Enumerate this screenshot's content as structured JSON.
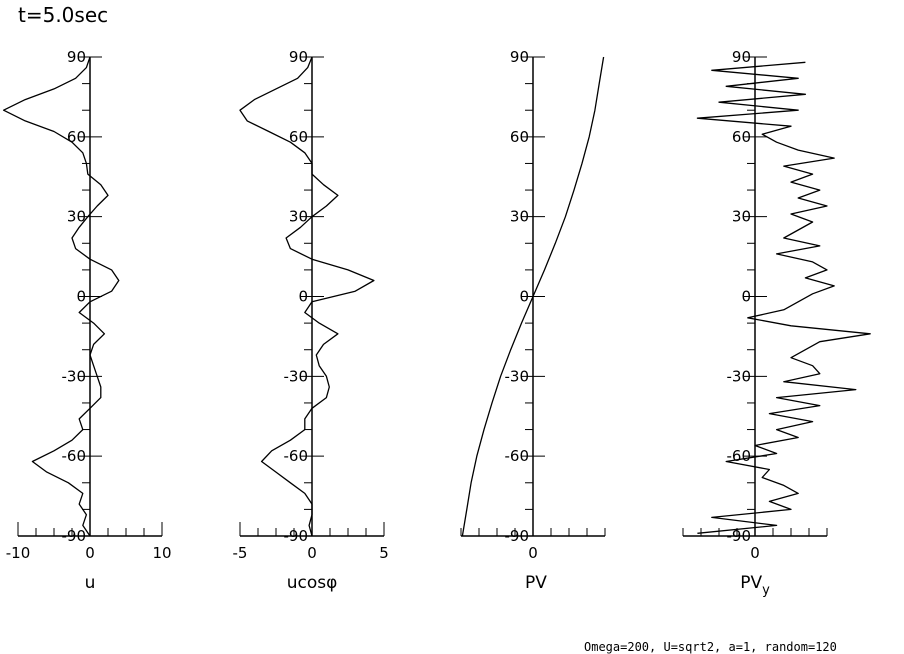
{
  "title": "t=5.0sec",
  "footer": "Omega=200, U=sqrt2, a=1, random=120",
  "chart_data": [
    {
      "type": "line",
      "xlabel": "u",
      "xlim": [
        -10,
        10
      ],
      "xticks": [
        "-10",
        "0",
        "10"
      ],
      "xtick_values": [
        -10,
        0,
        10
      ],
      "ylim": [
        -90,
        90
      ],
      "yticks": [
        "90",
        "60",
        "30",
        "0",
        "-30",
        "-60",
        "-90"
      ],
      "y_values": [
        90,
        86,
        82,
        78,
        74,
        70,
        66,
        62,
        58,
        54,
        50,
        46,
        42,
        38,
        34,
        30,
        26,
        22,
        18,
        14,
        10,
        6,
        2,
        -2,
        -6,
        -10,
        -14,
        -18,
        -22,
        -26,
        -30,
        -34,
        -38,
        -42,
        -46,
        -50,
        -54,
        -58,
        -62,
        -66,
        -70,
        -74,
        -78,
        -82,
        -86,
        -90
      ],
      "x_values": [
        0,
        -0.5,
        -2,
        -5,
        -9,
        -12,
        -9,
        -5,
        -2.5,
        -1,
        -0.5,
        -0.3,
        1.5,
        2.5,
        1,
        -0.3,
        -1.5,
        -2.5,
        -2,
        0,
        3,
        4,
        3,
        0,
        -1.5,
        0.5,
        2,
        0.5,
        0,
        0.5,
        1,
        1.5,
        1.5,
        0,
        -1.5,
        -1,
        -2.5,
        -5,
        -8,
        -6,
        -3,
        -1,
        -1.5,
        -0.5,
        -1,
        0
      ]
    },
    {
      "type": "line",
      "xlabel": "ucosφ",
      "xlim": [
        -5,
        5
      ],
      "xticks": [
        "-5",
        "0",
        "5"
      ],
      "xtick_values": [
        -5,
        0,
        5
      ],
      "ylim": [
        -90,
        90
      ],
      "yticks": [
        "90",
        "60",
        "30",
        "0",
        "-30",
        "-60",
        "-90"
      ],
      "y_values": [
        90,
        86,
        82,
        78,
        74,
        70,
        66,
        62,
        58,
        54,
        50,
        46,
        42,
        38,
        34,
        30,
        26,
        22,
        18,
        14,
        10,
        6,
        2,
        -2,
        -6,
        -10,
        -14,
        -18,
        -22,
        -26,
        -30,
        -34,
        -38,
        -42,
        -46,
        -50,
        -54,
        -58,
        -62,
        -66,
        -70,
        -74,
        -78,
        -82,
        -86,
        -90
      ],
      "x_values": [
        0,
        -0.3,
        -1,
        -2.5,
        -4,
        -5,
        -4.5,
        -3,
        -1.5,
        -0.5,
        0,
        0,
        0.8,
        1.8,
        1,
        0,
        -0.8,
        -1.8,
        -1.5,
        0,
        2.5,
        4.3,
        3,
        0,
        -0.5,
        0.5,
        1.8,
        0.8,
        0.3,
        0.5,
        1,
        1.2,
        1,
        0,
        -0.5,
        -0.5,
        -1.5,
        -2.8,
        -3.5,
        -2.5,
        -1.5,
        -0.5,
        0,
        0,
        -0.2,
        0
      ]
    },
    {
      "type": "line",
      "xlabel": "PV",
      "xlim": [
        -1,
        1
      ],
      "xticks": [
        "0"
      ],
      "xtick_values": [
        0
      ],
      "ylim": [
        -90,
        90
      ],
      "yticks": [
        "90",
        "60",
        "30",
        "0",
        "-30",
        "-60",
        "-90"
      ],
      "y_values": [
        90,
        80,
        70,
        60,
        50,
        40,
        30,
        20,
        10,
        0,
        -10,
        -20,
        -30,
        -40,
        -50,
        -60,
        -70,
        -80,
        -90
      ],
      "x_values": [
        0.98,
        0.92,
        0.86,
        0.78,
        0.68,
        0.57,
        0.45,
        0.31,
        0.16,
        0,
        -0.16,
        -0.31,
        -0.45,
        -0.57,
        -0.68,
        -0.78,
        -0.86,
        -0.92,
        -0.98
      ]
    },
    {
      "type": "line",
      "xlabel": "PVy",
      "xlim": [
        -1,
        1
      ],
      "xticks": [
        "0"
      ],
      "xtick_values": [
        0
      ],
      "ylim": [
        -90,
        90
      ],
      "yticks": [
        "90",
        "60",
        "30",
        "0",
        "-30",
        "-60",
        "-90"
      ],
      "y_values": [
        88,
        85,
        82,
        79,
        76,
        73,
        70,
        67,
        64,
        61,
        58,
        55,
        52,
        49,
        46,
        43,
        40,
        37,
        34,
        31,
        28,
        25,
        22,
        19,
        16,
        13,
        10,
        7,
        4,
        1,
        -2,
        -5,
        -8,
        -11,
        -14,
        -17,
        -20,
        -23,
        -26,
        -29,
        -32,
        -35,
        -38,
        -41,
        -44,
        -47,
        -50,
        -53,
        -56,
        -59,
        -62,
        -65,
        -68,
        -71,
        -74,
        -77,
        -80,
        -83,
        -86,
        -89
      ],
      "x_values": [
        0.7,
        -0.6,
        0.6,
        -0.4,
        0.7,
        -0.5,
        0.6,
        -0.8,
        0.5,
        0.1,
        0.3,
        0.6,
        1.1,
        0.4,
        0.8,
        0.5,
        0.9,
        0.6,
        1.0,
        0.5,
        0.8,
        0.6,
        0.4,
        0.9,
        0.3,
        0.8,
        1.0,
        0.7,
        1.1,
        0.8,
        0.6,
        0.4,
        -0.1,
        0.5,
        1.6,
        0.9,
        0.7,
        0.5,
        0.8,
        0.9,
        0.4,
        1.4,
        0.3,
        0.9,
        0.2,
        0.8,
        0.3,
        0.6,
        0,
        0.3,
        -0.4,
        0.2,
        0.1,
        0.4,
        0.6,
        0.2,
        0.5,
        -0.6,
        0.3,
        -0.8
      ]
    }
  ]
}
